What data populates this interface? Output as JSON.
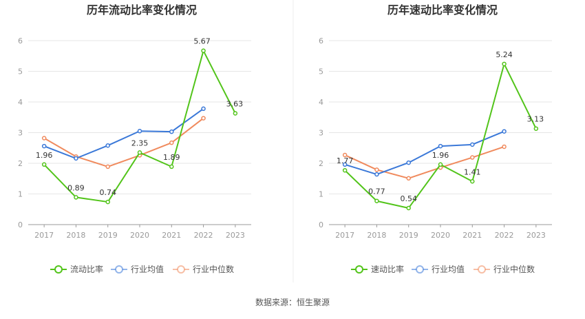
{
  "source_note": "数据来源：恒生聚源",
  "chart_data": [
    {
      "type": "line",
      "title": "历年流动比率变化情况",
      "categories": [
        "2017",
        "2018",
        "2019",
        "2020",
        "2021",
        "2022",
        "2023"
      ],
      "ylim": [
        0,
        6
      ],
      "yticks": [
        0,
        1,
        2,
        3,
        4,
        5,
        6
      ],
      "grid": true,
      "legend_position": "bottom",
      "series": [
        {
          "name": "流动比率",
          "color": "#52c41a",
          "values": [
            1.96,
            0.89,
            0.74,
            2.35,
            1.89,
            5.67,
            3.63
          ],
          "labels": true
        },
        {
          "name": "行业均值",
          "color": "#3a78d8",
          "values": [
            2.56,
            2.16,
            2.58,
            3.05,
            3.03,
            3.78,
            null
          ],
          "labels": false
        },
        {
          "name": "行业中位数",
          "color": "#f08a5d",
          "values": [
            2.82,
            2.22,
            1.89,
            2.26,
            2.67,
            3.47,
            null
          ],
          "labels": false
        }
      ]
    },
    {
      "type": "line",
      "title": "历年速动比率变化情况",
      "categories": [
        "2017",
        "2018",
        "2019",
        "2020",
        "2021",
        "2022",
        "2023"
      ],
      "ylim": [
        0,
        6
      ],
      "yticks": [
        0,
        1,
        2,
        3,
        4,
        5,
        6
      ],
      "grid": true,
      "legend_position": "bottom",
      "series": [
        {
          "name": "速动比率",
          "color": "#52c41a",
          "values": [
            1.77,
            0.77,
            0.54,
            1.96,
            1.41,
            5.24,
            3.13
          ],
          "labels": true
        },
        {
          "name": "行业均值",
          "color": "#3a78d8",
          "values": [
            1.96,
            1.64,
            2.02,
            2.56,
            2.61,
            3.04,
            null
          ],
          "labels": false
        },
        {
          "name": "行业中位数",
          "color": "#f08a5d",
          "values": [
            2.27,
            1.79,
            1.51,
            1.86,
            2.19,
            2.54,
            null
          ],
          "labels": false
        }
      ]
    }
  ]
}
